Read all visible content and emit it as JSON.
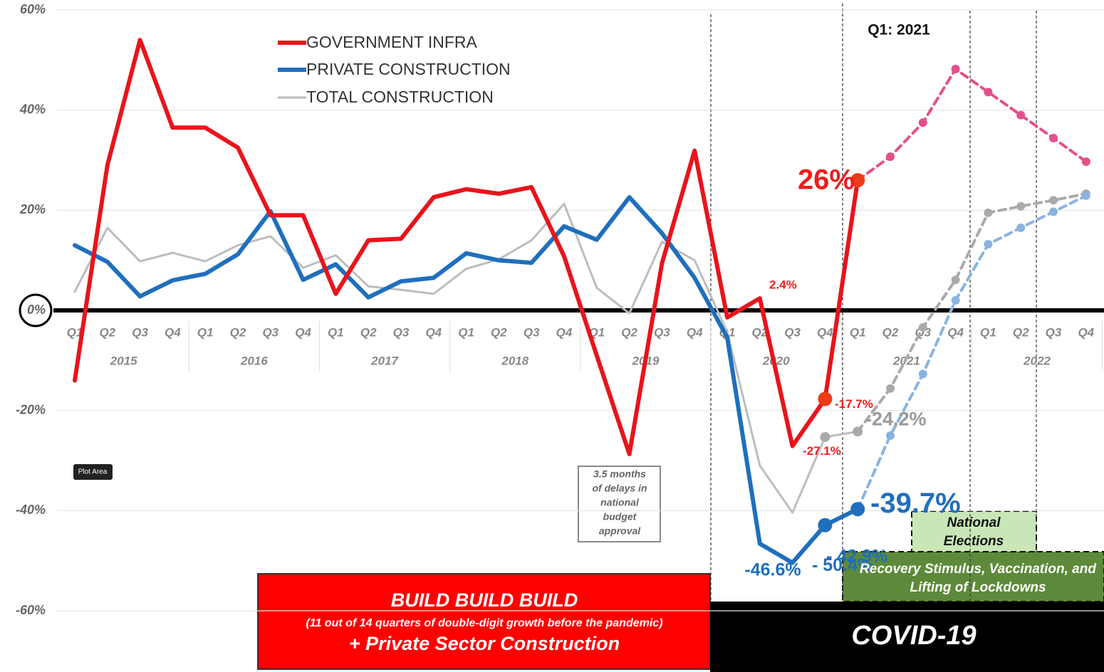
{
  "chart_data": {
    "type": "line",
    "categories": [
      "Q1",
      "Q2",
      "Q3",
      "Q4",
      "Q1",
      "Q2",
      "Q3",
      "Q4",
      "Q1",
      "Q2",
      "Q3",
      "Q4",
      "Q1",
      "Q2",
      "Q3",
      "Q4",
      "Q1",
      "Q2",
      "Q3",
      "Q4",
      "Q1",
      "Q2",
      "Q3",
      "Q4",
      "Q1",
      "Q2",
      "Q3",
      "Q4",
      "Q1",
      "Q2",
      "Q3",
      "Q4"
    ],
    "years": [
      "2015",
      "2016",
      "2017",
      "2018",
      "2019",
      "2020",
      "2021",
      "2022"
    ],
    "ylim": [
      -60,
      60
    ],
    "yticks": [
      {
        "value": -60,
        "label": "-60%"
      },
      {
        "value": -40,
        "label": "-40%"
      },
      {
        "value": -20,
        "label": "-20%"
      },
      {
        "value": 0,
        "label": "0%"
      },
      {
        "value": 20,
        "label": "20%"
      },
      {
        "value": 40,
        "label": "40%"
      },
      {
        "value": 60,
        "label": "60%"
      }
    ],
    "grid": true,
    "legend": "top-center",
    "series": [
      {
        "name": "GOVERNMENT INFRA",
        "color": "#e8141b",
        "values": [
          -14,
          29,
          54,
          36.5,
          36.5,
          32.5,
          19,
          19,
          3.3,
          14,
          14.3,
          22.6,
          24.2,
          23.3,
          24.6,
          10.8,
          -9,
          -28.7,
          9.4,
          31.9,
          -1.4,
          2.4,
          -27.1,
          -17.7,
          26,
          null,
          null,
          null,
          null,
          null,
          null,
          null
        ],
        "value_labels": [
          null,
          null,
          null,
          null,
          null,
          null,
          null,
          null,
          null,
          null,
          null,
          null,
          null,
          null,
          null,
          null,
          null,
          null,
          null,
          null,
          null,
          "2.4%",
          "-27.1%",
          "-17.7%",
          "26%",
          null,
          null,
          null,
          null,
          null,
          null,
          null
        ],
        "forecast_color": "#e4508a",
        "forecast_values": [
          null,
          null,
          null,
          null,
          null,
          null,
          null,
          null,
          null,
          null,
          null,
          null,
          null,
          null,
          null,
          null,
          null,
          null,
          null,
          null,
          null,
          null,
          null,
          null,
          26,
          30.7,
          37.5,
          48.2,
          43.6,
          39,
          34.4,
          29.7
        ]
      },
      {
        "name": "PRIVATE CONSTRUCTION",
        "color": "#1f6fbd",
        "values": [
          13,
          9.7,
          2.8,
          6,
          7.3,
          11.2,
          19.8,
          6.1,
          9.2,
          2.6,
          5.8,
          6.5,
          11.4,
          10,
          9.5,
          16.8,
          14.1,
          22.6,
          15.4,
          6.5,
          -5.4,
          -46.6,
          -50.4,
          -42.9,
          -39.7,
          null,
          null,
          null,
          null,
          null,
          null,
          null
        ],
        "value_labels": [
          null,
          null,
          null,
          null,
          null,
          null,
          null,
          null,
          null,
          null,
          null,
          null,
          null,
          null,
          null,
          null,
          null,
          null,
          null,
          null,
          null,
          "-46.6%",
          "- 50.4%",
          "- 42.9%",
          "-39.7%",
          null,
          null,
          null,
          null,
          null,
          null,
          null
        ],
        "forecast_color": "#8ab4e0",
        "forecast_values": [
          null,
          null,
          null,
          null,
          null,
          null,
          null,
          null,
          null,
          null,
          null,
          null,
          null,
          null,
          null,
          null,
          null,
          null,
          null,
          null,
          null,
          null,
          null,
          null,
          -39.7,
          -25,
          -12.7,
          2,
          13.2,
          16.5,
          19.7,
          22.9
        ]
      },
      {
        "name": "TOTAL CONSTRUCTION",
        "color": "#bdbdbd",
        "values": [
          3.7,
          16.5,
          9.8,
          11.5,
          9.8,
          13,
          14.8,
          8.5,
          11,
          4.8,
          4.1,
          3.3,
          8.3,
          10.2,
          14,
          21.3,
          4.5,
          -0.6,
          13.7,
          10,
          -4.3,
          -31,
          -40.4,
          -25.3,
          -24.2,
          null,
          null,
          null,
          null,
          null,
          null,
          null
        ],
        "value_labels": [
          null,
          null,
          null,
          null,
          null,
          null,
          null,
          null,
          null,
          null,
          null,
          null,
          null,
          null,
          null,
          null,
          null,
          null,
          null,
          null,
          null,
          null,
          null,
          null,
          "-24.2%",
          null,
          null,
          null,
          null,
          null,
          null,
          null
        ],
        "forecast_color": "#aaaaaa",
        "forecast_values": [
          null,
          null,
          null,
          null,
          null,
          null,
          null,
          null,
          null,
          null,
          null,
          null,
          null,
          null,
          null,
          null,
          null,
          null,
          null,
          null,
          null,
          null,
          null,
          null,
          -24.2,
          -15.6,
          -3.4,
          6.1,
          19.5,
          20.8,
          22,
          23.3
        ]
      }
    ],
    "annotations": {
      "q1_2021": "Q1: 2021",
      "plot_area": "Plot Area",
      "budget_delay": [
        "3.5 months",
        "of delays in",
        "national",
        "budget",
        "approval"
      ],
      "build_title": "BUILD BUILD BUILD",
      "build_sub": "(11 out of 14 quarters of double-digit growth before the pandemic)",
      "build_private": "+ Private Sector Construction",
      "covid": "COVID-19",
      "elections": [
        "National",
        "Elections"
      ],
      "recovery": [
        "Recovery Stimulus, Vaccination, and",
        "Lifting of Lockdowns"
      ]
    }
  }
}
